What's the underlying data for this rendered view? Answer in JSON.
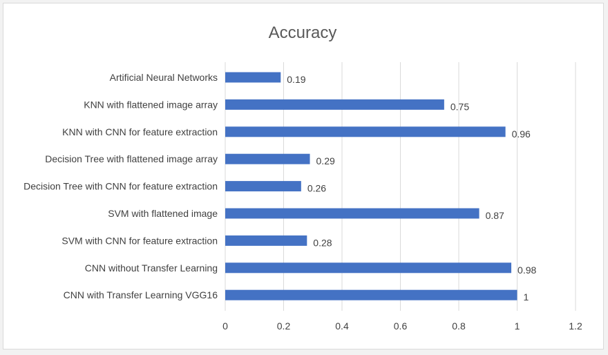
{
  "chart_data": {
    "type": "bar",
    "orientation": "horizontal",
    "title": "Accuracy",
    "categories": [
      "Artificial Neural Networks",
      "KNN with flattened image array",
      "KNN with CNN for feature extraction",
      "Decision Tree with flattened image array",
      "Decision Tree with CNN for feature extraction",
      "SVM with flattened image",
      "SVM with CNN for feature extraction",
      "CNN without Transfer Learning",
      "CNN with Transfer Learning VGG16"
    ],
    "values": [
      0.19,
      0.75,
      0.96,
      0.29,
      0.26,
      0.87,
      0.28,
      0.98,
      1
    ],
    "data_labels": [
      "0.19",
      "0.75",
      "0.96",
      "0.29",
      "0.26",
      "0.87",
      "0.28",
      "0.98",
      "1"
    ],
    "xlim": [
      0,
      1.2
    ],
    "xticks": [
      "0",
      "0.2",
      "0.4",
      "0.6",
      "0.8",
      "1",
      "1.2"
    ],
    "xlabel": "",
    "ylabel": "",
    "grid": "vertical",
    "legend": "none",
    "bar_color": "#4472c4",
    "grid_color": "#d9d9d9"
  }
}
